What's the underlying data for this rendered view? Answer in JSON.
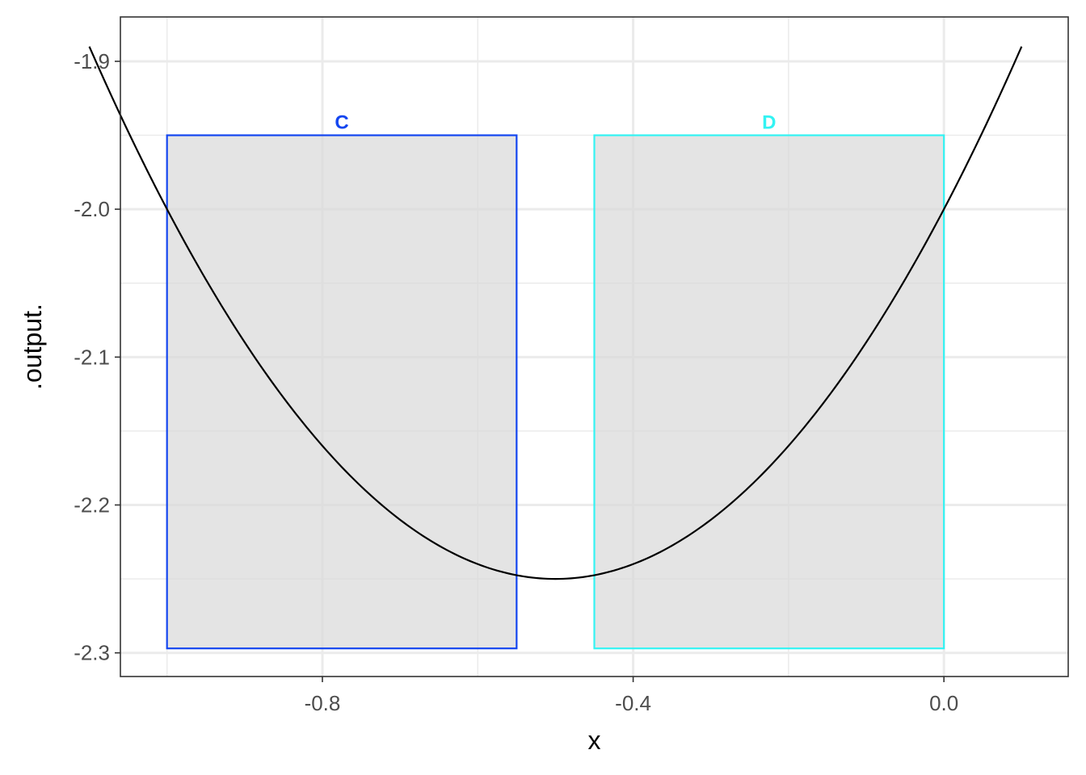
{
  "chart_data": {
    "type": "line",
    "title": "",
    "xlabel": "x",
    "ylabel": ".output.",
    "xlim": [
      -1.06,
      0.16
    ],
    "ylim": [
      -2.316,
      -1.87
    ],
    "x_ticks": [
      -0.8,
      -0.4,
      0.0
    ],
    "x_tick_labels": [
      "-0.8",
      "-0.4",
      "0.0"
    ],
    "x_minor_ticks": [
      -1.0,
      -0.6,
      -0.2
    ],
    "y_ticks": [
      -2.3,
      -2.2,
      -2.1,
      -2.0,
      -1.9
    ],
    "y_tick_labels": [
      "-2.3",
      "-2.2",
      "-2.1",
      "-2.0",
      "-1.9"
    ],
    "y_minor_ticks": [
      -2.25,
      -2.15,
      -2.05,
      -1.95
    ],
    "grid": true,
    "curve": {
      "expression": "x^2 + x - 2",
      "x_range": [
        -1.1,
        0.1
      ],
      "color": "#000000"
    },
    "regions": [
      {
        "label": "C",
        "xmin": -1.0,
        "xmax": -0.55,
        "ymin": -2.297,
        "ymax": -1.95,
        "color": "#1446F0",
        "fill": "#d9d9d9"
      },
      {
        "label": "D",
        "xmin": -0.45,
        "xmax": 0.0,
        "ymin": -2.297,
        "ymax": -1.95,
        "color": "#33F3F3",
        "fill": "#d9d9d9"
      }
    ]
  }
}
